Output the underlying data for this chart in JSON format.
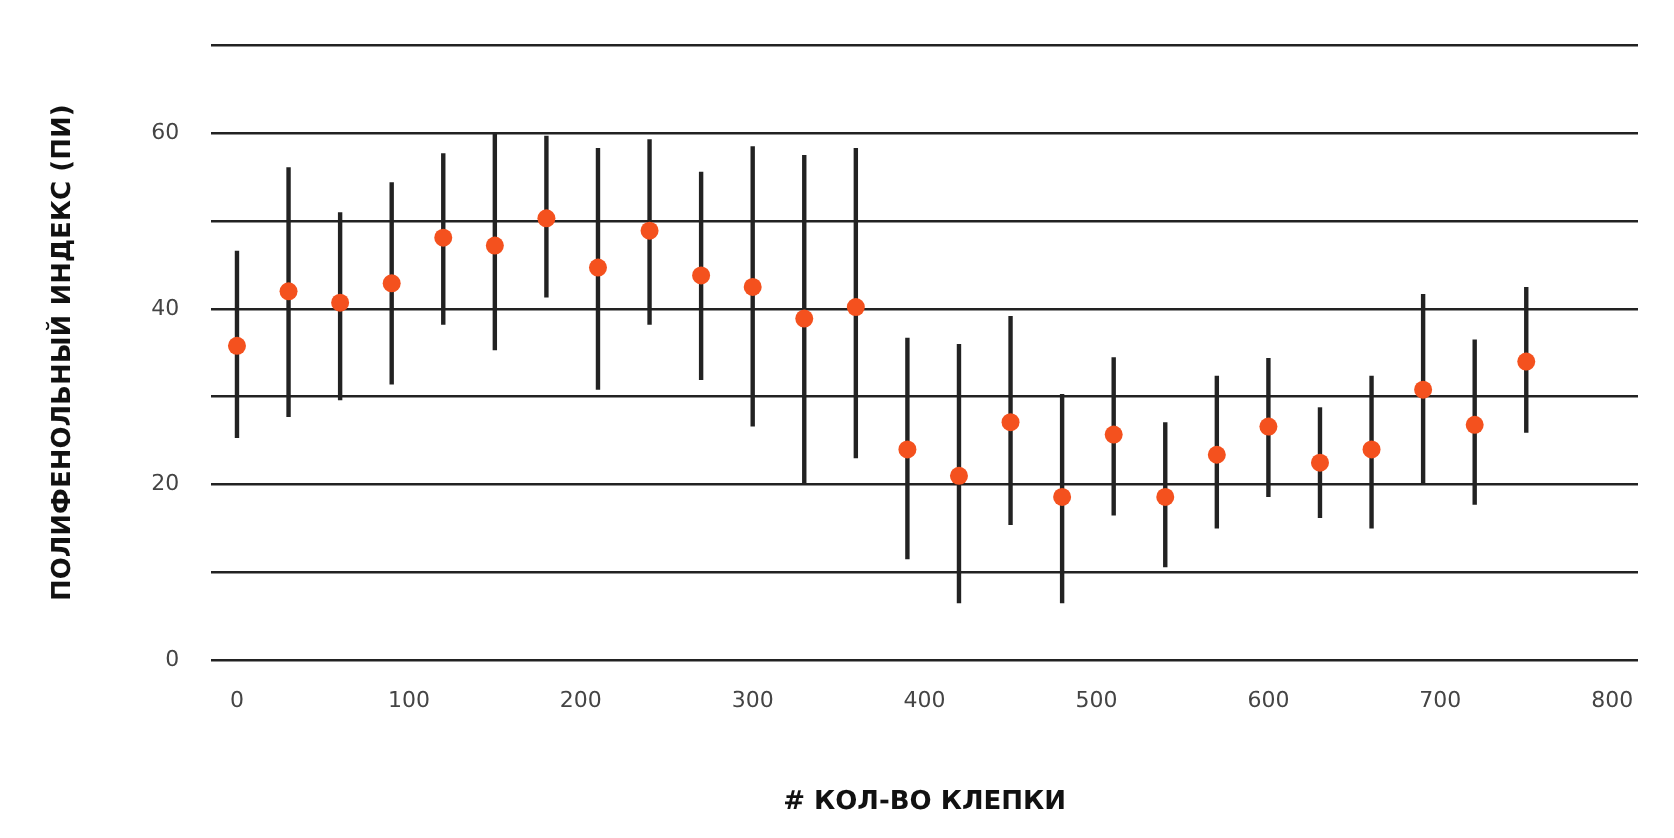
{
  "chart_data": {
    "type": "scatter",
    "xlabel": "# КОЛ-ВО КЛЕПКИ",
    "ylabel": "ПОЛИФЕНОЛЬНЫЙ ИНДЕКС (ПИ)",
    "x": [
      0,
      30,
      60,
      90,
      120,
      150,
      180,
      210,
      240,
      270,
      300,
      330,
      360,
      390,
      420,
      450,
      480,
      510,
      540,
      570,
      600,
      630,
      660,
      690,
      720,
      750
    ],
    "series": [
      {
        "color": "#f4511e",
        "values": [
          35.8,
          42.0,
          40.7,
          42.9,
          48.1,
          47.2,
          50.3,
          44.7,
          48.9,
          43.8,
          42.5,
          38.9,
          40.2,
          24.0,
          21.0,
          27.1,
          18.6,
          25.7,
          18.6,
          23.4,
          26.6,
          22.5,
          24.0,
          30.8,
          26.8,
          34.0
        ],
        "errors": [
          [
            25.3,
            46.6
          ],
          [
            27.7,
            56.1
          ],
          [
            29.6,
            51.0
          ],
          [
            31.4,
            54.4
          ],
          [
            38.2,
            57.7
          ],
          [
            35.3,
            59.9
          ],
          [
            41.3,
            59.7
          ],
          [
            30.8,
            58.3
          ],
          [
            38.2,
            59.3
          ],
          [
            31.9,
            55.6
          ],
          [
            26.6,
            58.5
          ],
          [
            20.0,
            57.5
          ],
          [
            23.0,
            58.3
          ],
          [
            11.5,
            36.7
          ],
          [
            6.5,
            36.0
          ],
          [
            15.4,
            39.2
          ],
          [
            6.5,
            30.3
          ],
          [
            16.5,
            34.5
          ],
          [
            10.6,
            27.1
          ],
          [
            15.0,
            32.4
          ],
          [
            18.6,
            34.4
          ],
          [
            16.2,
            28.8
          ],
          [
            15.0,
            32.4
          ],
          [
            20.0,
            41.7
          ],
          [
            17.7,
            36.5
          ],
          [
            25.9,
            42.5
          ]
        ]
      }
    ],
    "marker": "circle",
    "xlim": [
      -15,
      815
    ],
    "xticks": [
      0,
      100,
      200,
      300,
      400,
      500,
      600,
      700,
      800
    ],
    "ylim": [
      0,
      70
    ],
    "yticks": [
      0,
      {
        "value": 10,
        "label": null
      },
      20,
      {
        "value": 30,
        "label": null
      },
      40,
      {
        "value": 50,
        "label": null
      },
      60,
      {
        "value": 70,
        "label": null
      }
    ],
    "grid": "y",
    "legend": false
  }
}
